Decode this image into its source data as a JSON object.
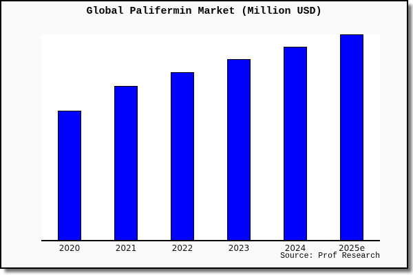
{
  "chart_data": {
    "type": "bar",
    "title": "Global Palifermin Market (Million USD)",
    "categories": [
      "2020",
      "2021",
      "2022",
      "2023",
      "2024",
      "2025e"
    ],
    "values": [
      62.8,
      74.8,
      81.5,
      87.9,
      94.0,
      100
    ],
    "values_note": "relative scale estimated from bar heights, 2025e = 100; no y-axis tick labels are shown in the chart",
    "xlabel": "",
    "ylabel": "",
    "ylim": [
      0,
      100
    ],
    "grid": false,
    "legend": false,
    "bar_color": "#0000ff",
    "bar_border_color": "#000000",
    "plot_background": "#ffffff",
    "canvas_background": "#fafafa",
    "frame_border_color": "#000000",
    "source_label": "Source: Prof Research"
  }
}
